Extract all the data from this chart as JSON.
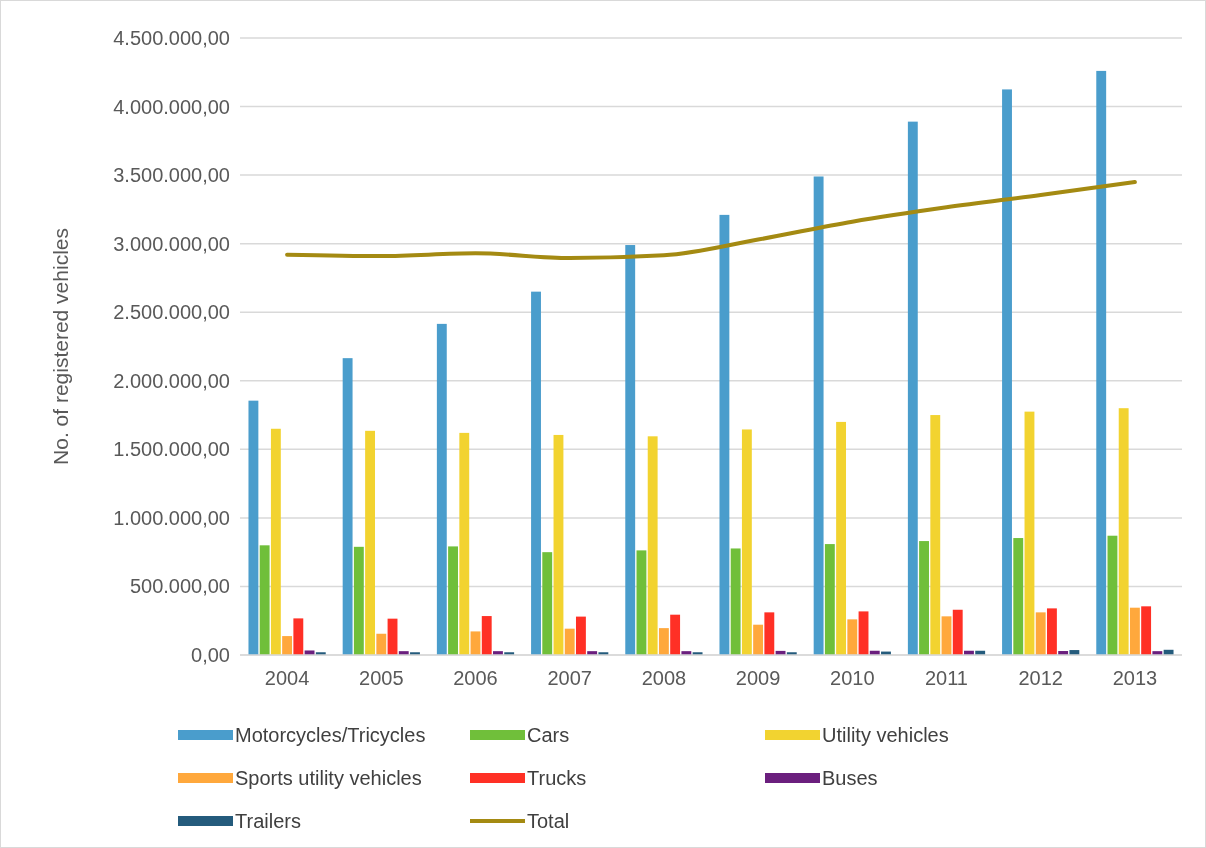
{
  "chart_data": {
    "type": "bar",
    "ylabel": "No. of registered vehicles",
    "categories": [
      "2004",
      "2005",
      "2006",
      "2007",
      "2008",
      "2009",
      "2010",
      "2011",
      "2012",
      "2013"
    ],
    "series": [
      {
        "name": "Motorcycles/Tricycles",
        "color": "#4a9dcc",
        "values": [
          1855000,
          2165000,
          2415000,
          2650000,
          2990000,
          3210000,
          3490000,
          3890000,
          4125000,
          4260000
        ]
      },
      {
        "name": "Cars",
        "color": "#70bf3a",
        "values": [
          800000,
          789000,
          792000,
          750000,
          763000,
          777000,
          809000,
          831000,
          853000,
          870000
        ]
      },
      {
        "name": "Utility vehicles",
        "color": "#f2d330",
        "values": [
          1650000,
          1635000,
          1620000,
          1605000,
          1595000,
          1645000,
          1700000,
          1750000,
          1775000,
          1800000
        ]
      },
      {
        "name": "Sports utility vehicles",
        "color": "#ffa83c",
        "values": [
          138000,
          155000,
          172000,
          192000,
          196000,
          221000,
          260000,
          282000,
          311000,
          345000
        ]
      },
      {
        "name": "Trucks",
        "color": "#ff3025",
        "values": [
          267000,
          265000,
          284000,
          280000,
          294000,
          311000,
          318000,
          330000,
          340000,
          355000
        ]
      },
      {
        "name": "Buses",
        "color": "#6b1f7e",
        "values": [
          33000,
          28000,
          28000,
          28000,
          28000,
          30000,
          31000,
          31000,
          29000,
          28000
        ]
      },
      {
        "name": "Trailers",
        "color": "#245b7c",
        "values": [
          20000,
          20000,
          20000,
          20000,
          20000,
          20000,
          25000,
          31000,
          36000,
          38000
        ]
      },
      {
        "name": "Total",
        "type": "line",
        "color": "#a48a12",
        "values": [
          2920000,
          2910000,
          2930000,
          2895000,
          2915000,
          3030000,
          3160000,
          3265000,
          3355000,
          3450000
        ]
      }
    ],
    "ylim": [
      0,
      4500000
    ],
    "yticks": [
      {
        "value": 0,
        "label": "0,00"
      },
      {
        "value": 500000,
        "label": "500.000,00"
      },
      {
        "value": 1000000,
        "label": "1.000.000,00"
      },
      {
        "value": 1500000,
        "label": "1.500.000,00"
      },
      {
        "value": 2000000,
        "label": "2.000.000,00"
      },
      {
        "value": 2500000,
        "label": "2.500.000,00"
      },
      {
        "value": 3000000,
        "label": "3.000.000,00"
      },
      {
        "value": 3500000,
        "label": "3.500.000,00"
      },
      {
        "value": 4000000,
        "label": "4.000.000,00"
      },
      {
        "value": 4500000,
        "label": "4.500.000,00"
      }
    ],
    "grid": "y",
    "legend": "bottom",
    "marker": "none"
  }
}
